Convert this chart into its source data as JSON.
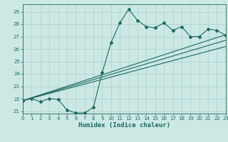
{
  "xlabel": "Humidex (Indice chaleur)",
  "bg_color": "#cce8e5",
  "line_color": "#1a6b5a",
  "grid_color": "#afd4d0",
  "xlim": [
    0,
    23
  ],
  "ylim": [
    20.8,
    29.6
  ],
  "yticks": [
    21,
    22,
    23,
    24,
    25,
    26,
    27,
    28,
    29
  ],
  "xticks": [
    0,
    1,
    2,
    3,
    4,
    5,
    6,
    7,
    8,
    9,
    10,
    11,
    12,
    13,
    14,
    15,
    16,
    17,
    18,
    19,
    20,
    21,
    22,
    23
  ],
  "curve1_x": [
    0,
    1,
    2,
    3,
    4,
    5,
    6,
    7,
    8,
    9,
    10,
    11,
    12,
    13,
    14,
    15,
    16,
    17,
    18,
    19,
    20,
    21,
    22,
    23
  ],
  "curve1_y": [
    21.85,
    22.0,
    21.75,
    22.0,
    21.95,
    21.1,
    20.85,
    20.85,
    21.3,
    24.1,
    26.5,
    28.1,
    29.2,
    28.3,
    27.8,
    27.7,
    28.1,
    27.5,
    27.8,
    27.0,
    27.0,
    27.6,
    27.5,
    27.1
  ],
  "line1_x": [
    0,
    23
  ],
  "line1_y": [
    21.85,
    27.15
  ],
  "line2_x": [
    0,
    23
  ],
  "line2_y": [
    21.85,
    26.7
  ],
  "line3_x": [
    0,
    23
  ],
  "line3_y": [
    21.85,
    26.2
  ]
}
